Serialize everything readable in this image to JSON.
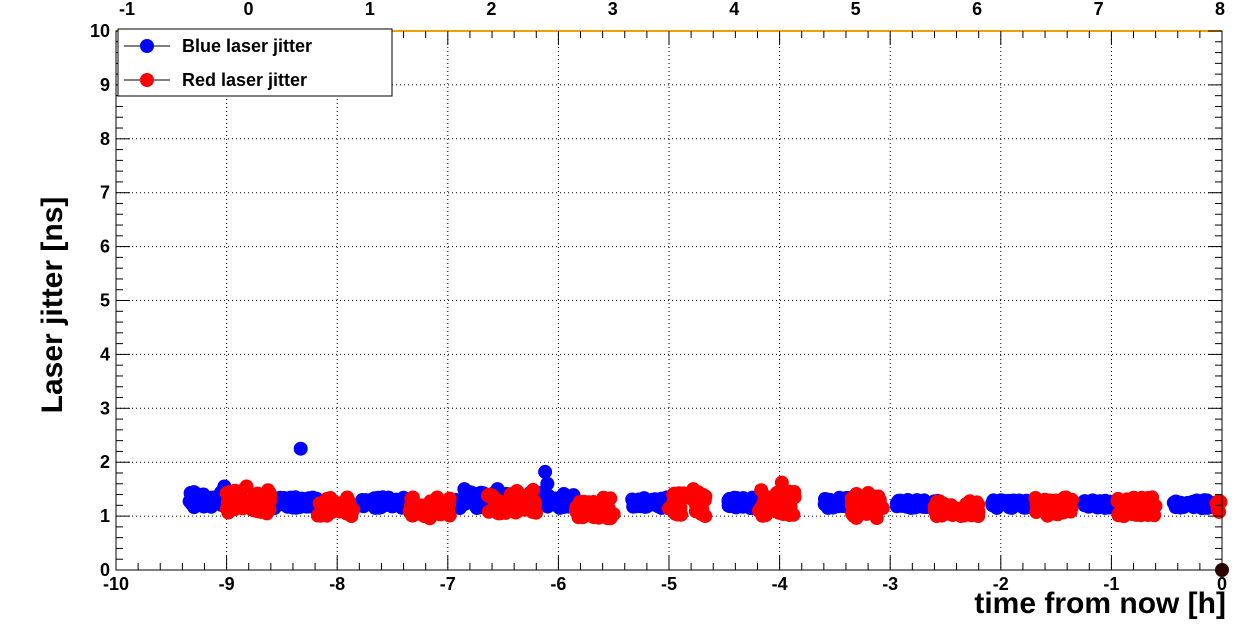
{
  "chart_data": {
    "type": "scatter",
    "title": "",
    "xlabel": "time from now [h]",
    "ylabel": "Laser jitter [ns]",
    "xlim": [
      -10,
      0
    ],
    "ylim": [
      0,
      10
    ],
    "grid": true,
    "legend_position": "top-left",
    "x_ticks": [
      "-10",
      "-9",
      "-8",
      "-7",
      "-6",
      "-5",
      "-4",
      "-3",
      "-2",
      "-1",
      "0"
    ],
    "y_ticks": [
      "0",
      "1",
      "2",
      "3",
      "4",
      "5",
      "6",
      "7",
      "8",
      "9",
      "10"
    ],
    "top_axis_ticks": [
      "-1",
      "0",
      "1",
      "2",
      "3",
      "4",
      "5",
      "6",
      "7",
      "8"
    ],
    "colors": {
      "blue": "#0000ff",
      "red": "#ff0000",
      "axis_top": "#f0a000",
      "end_marker": "#300000"
    },
    "series": [
      {
        "name": "Blue laser jitter",
        "color": "#0000ff",
        "clusters": [
          {
            "x": [
              -9.35,
              -9.03
            ],
            "y": [
              1.15,
              1.45
            ]
          },
          {
            "x": [
              -8.65,
              -8.15
            ],
            "y": [
              1.15,
              1.35
            ]
          },
          {
            "x": [
              -7.8,
              -7.35
            ],
            "y": [
              1.15,
              1.35
            ]
          },
          {
            "x": [
              -6.98,
              -6.45
            ],
            "y": [
              1.15,
              1.45
            ]
          },
          {
            "x": [
              -6.25,
              -5.85
            ],
            "y": [
              1.15,
              1.45
            ]
          },
          {
            "x": [
              -5.35,
              -4.95
            ],
            "y": [
              1.15,
              1.35
            ]
          },
          {
            "x": [
              -4.5,
              -4.1
            ],
            "y": [
              1.15,
              1.35
            ]
          },
          {
            "x": [
              -3.6,
              -3.3
            ],
            "y": [
              1.15,
              1.35
            ]
          },
          {
            "x": [
              -2.95,
              -2.55
            ],
            "y": [
              1.15,
              1.3
            ]
          },
          {
            "x": [
              -2.08,
              -1.65
            ],
            "y": [
              1.15,
              1.3
            ]
          },
          {
            "x": [
              -1.25,
              -0.85
            ],
            "y": [
              1.15,
              1.3
            ]
          },
          {
            "x": [
              -0.45,
              -0.05
            ],
            "y": [
              1.15,
              1.3
            ]
          }
        ],
        "points": [
          {
            "x": -8.33,
            "y": 2.25
          },
          {
            "x": -6.12,
            "y": 1.82
          },
          {
            "x": -9.02,
            "y": 1.55
          },
          {
            "x": -6.1,
            "y": 1.6
          },
          {
            "x": -6.85,
            "y": 1.5
          },
          {
            "x": -6.55,
            "y": 1.5
          }
        ]
      },
      {
        "name": "Red laser jitter",
        "color": "#ff0000",
        "clusters": [
          {
            "x": [
              -9.0,
              -8.6
            ],
            "y": [
              1.05,
              1.5
            ]
          },
          {
            "x": [
              -8.18,
              -7.85
            ],
            "y": [
              1.0,
              1.35
            ]
          },
          {
            "x": [
              -7.38,
              -6.98
            ],
            "y": [
              0.95,
              1.35
            ]
          },
          {
            "x": [
              -6.65,
              -6.2
            ],
            "y": [
              1.05,
              1.5
            ]
          },
          {
            "x": [
              -5.85,
              -5.5
            ],
            "y": [
              0.95,
              1.35
            ]
          },
          {
            "x": [
              -5.0,
              -4.65
            ],
            "y": [
              1.0,
              1.45
            ]
          },
          {
            "x": [
              -4.2,
              -3.85
            ],
            "y": [
              1.0,
              1.5
            ]
          },
          {
            "x": [
              -3.35,
              -3.05
            ],
            "y": [
              0.95,
              1.45
            ]
          },
          {
            "x": [
              -2.6,
              -2.2
            ],
            "y": [
              1.0,
              1.3
            ]
          },
          {
            "x": [
              -1.7,
              -1.35
            ],
            "y": [
              1.0,
              1.35
            ]
          },
          {
            "x": [
              -0.95,
              -0.6
            ],
            "y": [
              1.0,
              1.35
            ]
          },
          {
            "x": [
              -0.05,
              0.0
            ],
            "y": [
              1.05,
              1.3
            ]
          }
        ],
        "points": [
          {
            "x": -3.98,
            "y": 1.62
          },
          {
            "x": -4.78,
            "y": 1.5
          },
          {
            "x": -8.82,
            "y": 1.55
          }
        ]
      }
    ],
    "end_marker": {
      "x": 0,
      "y": 0
    }
  }
}
